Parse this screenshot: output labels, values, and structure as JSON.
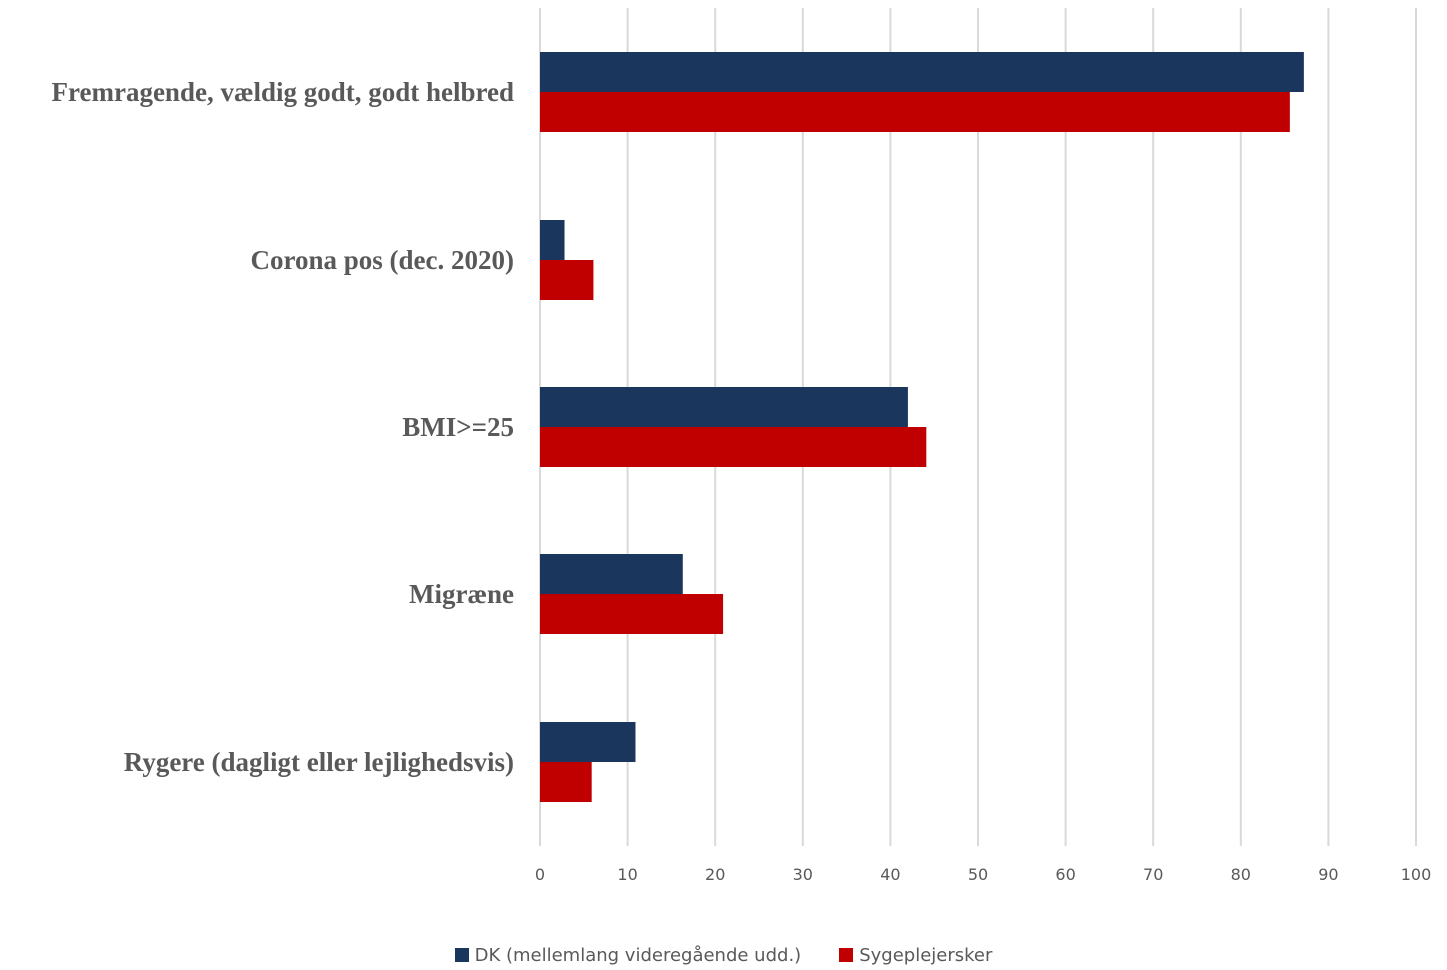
{
  "chart_data": {
    "type": "bar",
    "orientation": "horizontal",
    "categories": [
      "Fremragende, vældig godt, godt helbred",
      "Corona pos (dec. 2020)",
      "BMI>=25",
      "Migræne",
      "Rygere (dagligt eller lejlighedsvis)"
    ],
    "series": [
      {
        "name": "DK (mellemlang videregående udd.)",
        "color": "#1b365d",
        "values": [
          87.2,
          2.8,
          42.0,
          16.3,
          10.9
        ]
      },
      {
        "name": "Sygeplejersker",
        "color": "#c00000",
        "values": [
          85.6,
          6.1,
          44.1,
          20.9,
          5.9
        ]
      }
    ],
    "xlim": [
      0,
      100
    ],
    "xticks": [
      "0",
      "10",
      "20",
      "30",
      "40",
      "50",
      "60",
      "70",
      "80",
      "90",
      "100"
    ],
    "grid": true,
    "legend_position": "bottom"
  }
}
